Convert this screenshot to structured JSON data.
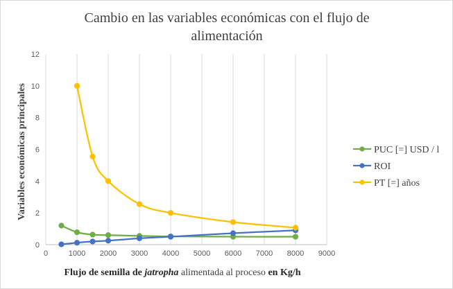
{
  "chart_data": {
    "type": "line",
    "title_line1": "Cambio en las variables económicas con el flujo de",
    "title_line2": "alimentación",
    "ylabel": "Variables económicas principales",
    "xlabel_part1": "Flujo de semilla de ",
    "xlabel_italic": "jatropha",
    "xlabel_part2": " alimentada al proceso ",
    "xlabel_part3": "en Kg/h",
    "xlim": [
      0,
      9000
    ],
    "ylim": [
      0,
      12
    ],
    "xticks": [
      "0",
      "1000",
      "2000",
      "3000",
      "4000",
      "5000",
      "6000",
      "7000",
      "8000",
      "9000"
    ],
    "yticks": [
      "0",
      "2",
      "4",
      "6",
      "8",
      "10",
      "12"
    ],
    "grid": "vertical",
    "legend_position": "right",
    "series": [
      {
        "name": "PUC [=] USD / l",
        "color": "#70ad47",
        "points": [
          [
            500,
            1.2
          ],
          [
            1000,
            0.78
          ],
          [
            1500,
            0.63
          ],
          [
            2000,
            0.6
          ],
          [
            3000,
            0.55
          ],
          [
            4000,
            0.52
          ],
          [
            6000,
            0.5
          ],
          [
            8000,
            0.5
          ]
        ]
      },
      {
        "name": "ROI",
        "color": "#4472c4",
        "points": [
          [
            500,
            0.02
          ],
          [
            1000,
            0.12
          ],
          [
            1500,
            0.2
          ],
          [
            2000,
            0.25
          ],
          [
            3000,
            0.4
          ],
          [
            4000,
            0.5
          ],
          [
            6000,
            0.72
          ],
          [
            8000,
            0.9
          ]
        ]
      },
      {
        "name": "PT [=] años",
        "color": "#ffc000",
        "points": [
          [
            1000,
            10.0
          ],
          [
            1500,
            5.55
          ],
          [
            2000,
            4.0
          ],
          [
            3000,
            2.55
          ],
          [
            4000,
            2.0
          ],
          [
            6000,
            1.42
          ],
          [
            8000,
            1.07
          ]
        ]
      }
    ]
  }
}
